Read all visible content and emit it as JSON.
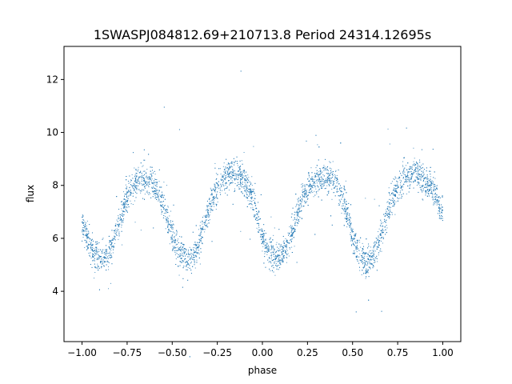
{
  "chart_data": {
    "type": "scatter",
    "title": "1SWASPJ084812.69+210713.8 Period 24314.12695s",
    "xlabel": "phase",
    "ylabel": "flux",
    "xlim": [
      -1.1,
      1.1
    ],
    "ylim": [
      2.1,
      13.25
    ],
    "xticks": [
      "−1.00",
      "−0.75",
      "−0.50",
      "−0.25",
      "0.00",
      "0.25",
      "0.50",
      "0.75",
      "1.00"
    ],
    "xtick_values": [
      -1.0,
      -0.75,
      -0.5,
      -0.25,
      0.0,
      0.25,
      0.5,
      0.75,
      1.0
    ],
    "yticks": [
      "4",
      "6",
      "8",
      "10",
      "12"
    ],
    "ytick_values": [
      4,
      6,
      8,
      10,
      12
    ],
    "grid": false,
    "marker_color": "#1f77b4",
    "series": [
      {
        "x": [
          -1.0,
          -0.95,
          -0.9,
          -0.85,
          -0.8,
          -0.75,
          -0.7,
          -0.65,
          -0.6,
          -0.55,
          -0.5,
          -0.45,
          -0.4,
          -0.35,
          -0.3,
          -0.25,
          -0.2,
          -0.15,
          -0.1,
          -0.05,
          0.0,
          0.05,
          0.1,
          0.15,
          0.2,
          0.25,
          0.3,
          0.35,
          0.4,
          0.45,
          0.5,
          0.55,
          0.6,
          0.65,
          0.7,
          0.75,
          0.8,
          0.85,
          0.9,
          0.95,
          1.0
        ],
        "y": [
          6.6,
          5.6,
          5.3,
          5.5,
          6.4,
          7.5,
          8.1,
          8.2,
          8.0,
          7.3,
          6.1,
          5.4,
          5.2,
          5.8,
          7.0,
          7.9,
          8.3,
          8.4,
          8.1,
          7.4,
          6.1,
          5.4,
          5.3,
          5.9,
          7.0,
          7.9,
          8.2,
          8.3,
          8.1,
          7.4,
          6.1,
          5.3,
          5.2,
          5.9,
          7.1,
          7.9,
          8.3,
          8.4,
          8.1,
          7.8,
          7.0
        ]
      }
    ]
  }
}
